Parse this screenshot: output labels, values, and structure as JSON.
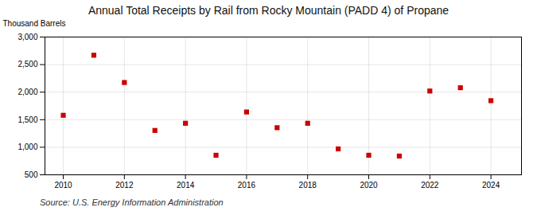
{
  "chart_data": {
    "type": "scatter",
    "title": "Annual Total Receipts by Rail from Rocky Mountain (PADD 4) of Propane",
    "ylabel": "Thousand Barrels",
    "source": "Source: U.S. Energy Information Administration",
    "x": [
      2010,
      2011,
      2012,
      2013,
      2014,
      2015,
      2016,
      2017,
      2018,
      2019,
      2020,
      2021,
      2022,
      2023,
      2024
    ],
    "values": [
      1580,
      2670,
      2175,
      1305,
      1435,
      855,
      1640,
      1355,
      1435,
      970,
      855,
      840,
      2020,
      2080,
      1845
    ],
    "color": "#cc0000",
    "marker": "square",
    "xlim": [
      2009.4,
      2025.0
    ],
    "xticks": [
      2010,
      2012,
      2014,
      2016,
      2018,
      2020,
      2022,
      2024
    ],
    "ylim": [
      500,
      3000
    ],
    "yticks": [
      500,
      {
        "value": 1000,
        "label": "1,000"
      },
      {
        "value": 1500,
        "label": "1,500"
      },
      {
        "value": 2000,
        "label": "2,000"
      },
      {
        "value": 2500,
        "label": "2,500"
      },
      {
        "value": 3000,
        "label": "3,000"
      }
    ],
    "grid": true
  }
}
